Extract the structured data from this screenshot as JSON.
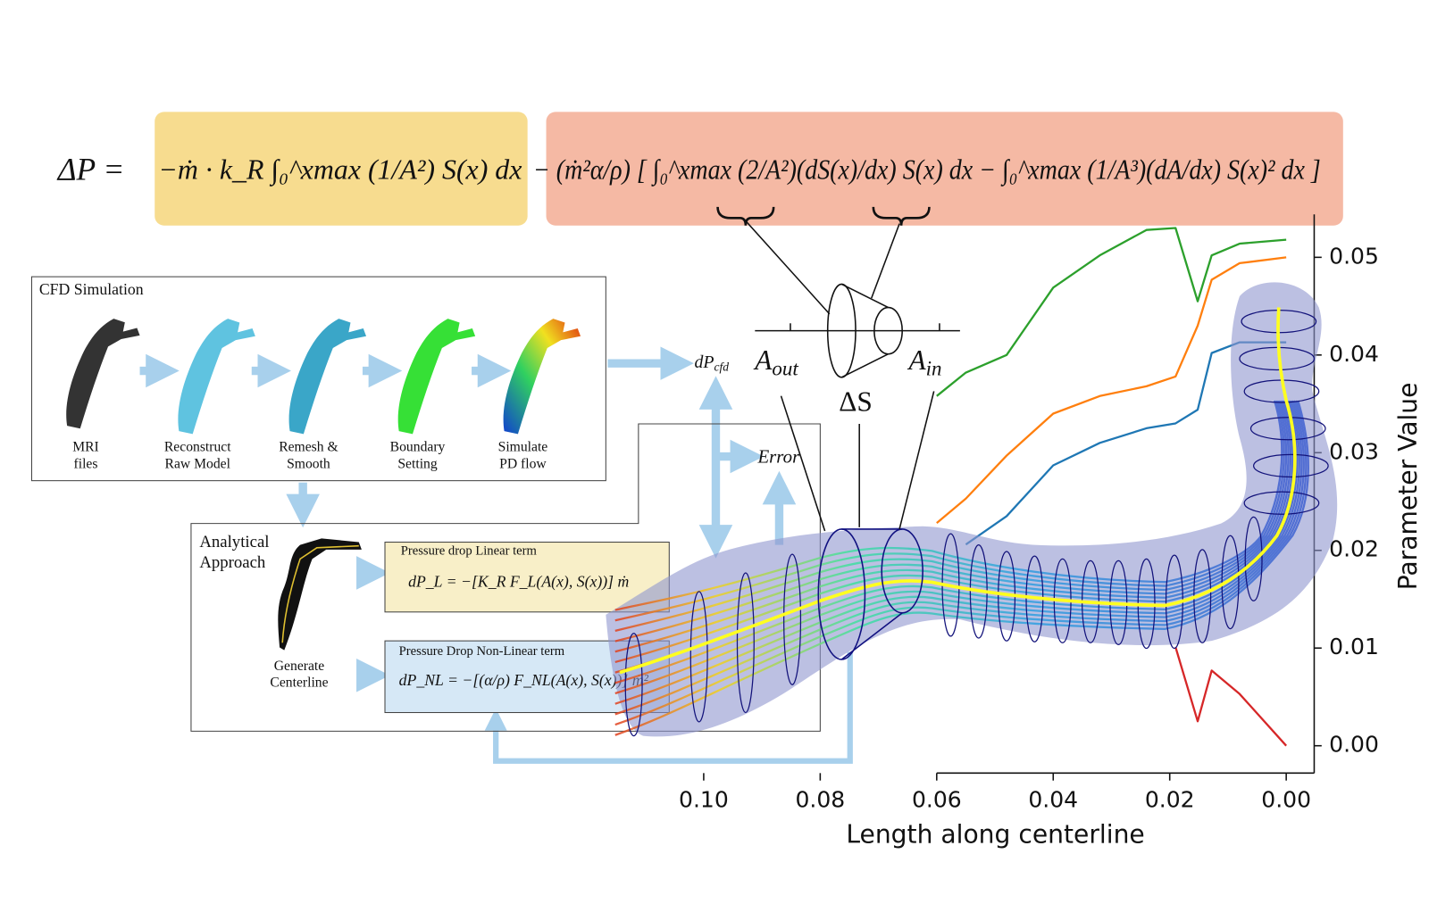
{
  "equation": {
    "lhs": "ΔP =",
    "linear_term": "−ṁ · k_R ∫₀^xmax (1/A²) S(x) dx",
    "nonlinear_term": "− (ṁ²α/ρ) [ ∫₀^xmax (2/A²)(dS(x)/dx) S(x) dx − ∫₀^xmax (1/A³)(dA/dx) S(x)² dx ]"
  },
  "cone": {
    "a_out": {
      "symbol": "A",
      "subscript": "out"
    },
    "a_in": {
      "symbol": "A",
      "subscript": "in"
    },
    "delta_s": "ΔS"
  },
  "cfd": {
    "title": "CFD Simulation",
    "steps": [
      [
        "MRI",
        "files"
      ],
      [
        "Reconstruct",
        "Raw Model"
      ],
      [
        "Remesh &",
        "Smooth"
      ],
      [
        "Boundary",
        "Setting"
      ],
      [
        "Simulate",
        "PD flow"
      ]
    ]
  },
  "flow": {
    "dp_cfd": {
      "symbol": "dP",
      "subscript": "cfd"
    },
    "error": "Error"
  },
  "analytical": {
    "title": [
      "Analytical",
      "Approach"
    ],
    "centerline": [
      "Generate",
      "Centerline"
    ],
    "linear": {
      "title": "Pressure drop Linear term",
      "formula": "dP_L = −[K_R F_L(A(x), S(x))] ṁ"
    },
    "nonlinear": {
      "title": "Pressure Drop Non-Linear term",
      "formula": "dP_NL = −[(α/ρ) F_NL(A(x), S(x))] ṁ²"
    }
  },
  "chart_data": {
    "type": "line",
    "xlabel": "Length along centerline",
    "ylabel": "Parameter Value",
    "x": [
      0.06,
      0.055,
      0.048,
      0.04,
      0.032,
      0.024,
      0.019,
      0.0152,
      0.0128,
      0.008,
      0.0
    ],
    "xlim": [
      0.06,
      -0.0048
    ],
    "xticks": [
      {
        "value": 0.1,
        "label": "0.10"
      },
      0.08,
      0.06,
      0.04,
      0.02,
      {
        "value": 0,
        "label": "0.00"
      }
    ],
    "ylim": [
      -0.0028,
      0.0544
    ],
    "yticks": [
      {
        "value": 0,
        "label": "0.00"
      },
      0.01,
      0.02,
      0.03,
      0.04,
      0.05
    ],
    "series": [
      {
        "color": "#2ca02c",
        "values": [
          0.0358,
          0.0382,
          0.04,
          0.0469,
          0.0502,
          0.0528,
          0.053,
          0.0455,
          0.0502,
          0.0514,
          0.0518
        ]
      },
      {
        "color": "#ff7f0e",
        "values": [
          0.0228,
          0.0253,
          0.0297,
          0.034,
          0.0358,
          0.0368,
          0.0378,
          0.043,
          0.0477,
          0.0494,
          0.05
        ]
      },
      {
        "color": "#1f77b4",
        "values": [
          null,
          0.0206,
          0.0235,
          0.0287,
          0.031,
          0.0325,
          0.033,
          0.0344,
          0.0402,
          0.0413,
          0.0413
        ]
      },
      {
        "color": "#d62728",
        "values": [
          null,
          null,
          null,
          null,
          null,
          null,
          0.0101,
          0.0025,
          0.0077,
          0.0053,
          0.0
        ]
      }
    ]
  }
}
